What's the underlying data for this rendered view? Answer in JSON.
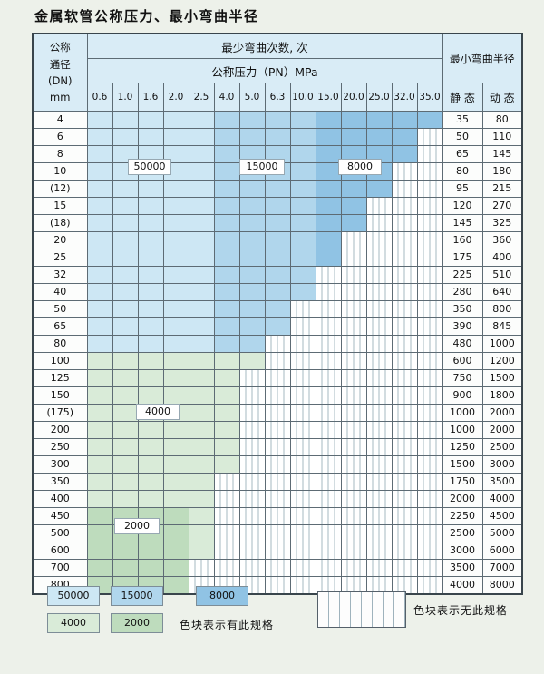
{
  "title": "金属软管公称压力、最小弯曲半径",
  "table": {
    "header": {
      "dn_lines": [
        "公称",
        "通径",
        "(DN)",
        "mm"
      ],
      "cycles_title": "最少弯曲次数, 次",
      "pressure_title": "公称压力（PN）MPa",
      "pressure_values": [
        "0.6",
        "1.0",
        "1.6",
        "2.0",
        "2.5",
        "4.0",
        "5.0",
        "6.3",
        "10.0",
        "15.0",
        "20.0",
        "25.0",
        "32.0",
        "35.0"
      ],
      "radius_title": "最小弯曲半径",
      "static_label": "静 态",
      "dynamic_label": "动 态"
    },
    "cell_states_legend": {
      "5": "50000",
      "1": "15000",
      "8": "8000",
      "4": "4000",
      "2": "2000",
      "x": "无此规格"
    },
    "rows": [
      {
        "dn": "4",
        "cells": "55555111188888",
        "static": "35",
        "dynamic": "80"
      },
      {
        "dn": "6",
        "cells": "5555511118888x",
        "static": "50",
        "dynamic": "110"
      },
      {
        "dn": "8",
        "cells": "5555511118888x",
        "static": "65",
        "dynamic": "145"
      },
      {
        "dn": "10",
        "cells": "555551111888xx",
        "static": "80",
        "dynamic": "180"
      },
      {
        "dn": "(12)",
        "cells": "555551111888xx",
        "static": "95",
        "dynamic": "215"
      },
      {
        "dn": "15",
        "cells": "55555111188xxx",
        "static": "120",
        "dynamic": "270"
      },
      {
        "dn": "(18)",
        "cells": "55555111188xxx",
        "static": "145",
        "dynamic": "325"
      },
      {
        "dn": "20",
        "cells": "5555511118xxxx",
        "static": "160",
        "dynamic": "360"
      },
      {
        "dn": "25",
        "cells": "5555511118xxxx",
        "static": "175",
        "dynamic": "400"
      },
      {
        "dn": "32",
        "cells": "555551111xxxxx",
        "static": "225",
        "dynamic": "510"
      },
      {
        "dn": "40",
        "cells": "555551111xxxxx",
        "static": "280",
        "dynamic": "640"
      },
      {
        "dn": "50",
        "cells": "55555111xxxxxx",
        "static": "350",
        "dynamic": "800"
      },
      {
        "dn": "65",
        "cells": "55555111xxxxxx",
        "static": "390",
        "dynamic": "845"
      },
      {
        "dn": "80",
        "cells": "5555511xxxxxxx",
        "static": "480",
        "dynamic": "1000"
      },
      {
        "dn": "100",
        "cells": "4444444xxxxxxx",
        "static": "600",
        "dynamic": "1200"
      },
      {
        "dn": "125",
        "cells": "444444xxxxxxxx",
        "static": "750",
        "dynamic": "1500"
      },
      {
        "dn": "150",
        "cells": "444444xxxxxxxx",
        "static": "900",
        "dynamic": "1800"
      },
      {
        "dn": "(175)",
        "cells": "444444xxxxxxxx",
        "static": "1000",
        "dynamic": "2000"
      },
      {
        "dn": "200",
        "cells": "444444xxxxxxxx",
        "static": "1000",
        "dynamic": "2000"
      },
      {
        "dn": "250",
        "cells": "444444xxxxxxxx",
        "static": "1250",
        "dynamic": "2500"
      },
      {
        "dn": "300",
        "cells": "444444xxxxxxxx",
        "static": "1500",
        "dynamic": "3000"
      },
      {
        "dn": "350",
        "cells": "44444xxxxxxxxx",
        "static": "1750",
        "dynamic": "3500"
      },
      {
        "dn": "400",
        "cells": "44444xxxxxxxxx",
        "static": "2000",
        "dynamic": "4000"
      },
      {
        "dn": "450",
        "cells": "22224xxxxxxxxx",
        "static": "2250",
        "dynamic": "4500"
      },
      {
        "dn": "500",
        "cells": "22224xxxxxxxxx",
        "static": "2500",
        "dynamic": "5000"
      },
      {
        "dn": "600",
        "cells": "22224xxxxxxxxx",
        "static": "3000",
        "dynamic": "6000"
      },
      {
        "dn": "700",
        "cells": "2222xxxxxxxxxx",
        "static": "3500",
        "dynamic": "7000"
      },
      {
        "dn": "800",
        "cells": "2222xxxxxxxxxx",
        "static": "4000",
        "dynamic": "8000"
      }
    ]
  },
  "overlay_labels": {
    "l50000": "50000",
    "l15000": "15000",
    "l8000": "8000",
    "l4000": "4000",
    "l2000": "2000"
  },
  "legend": {
    "items": [
      {
        "value": "50000",
        "color": "#cde7f4"
      },
      {
        "value": "15000",
        "color": "#b0d6ec"
      },
      {
        "value": "8000",
        "color": "#90c3e4"
      },
      {
        "value": "4000",
        "color": "#d9ebd8"
      },
      {
        "value": "2000",
        "color": "#bedcbd"
      }
    ],
    "has_spec_text": "色块表示有此规格",
    "no_spec_text": "色块表示无此规格"
  },
  "colors": {
    "page_bg": "#edf1ea",
    "header_bg": "#d9ecf6",
    "grid_line": "#5d6b74",
    "hatch_line": "#a6b9c2"
  }
}
